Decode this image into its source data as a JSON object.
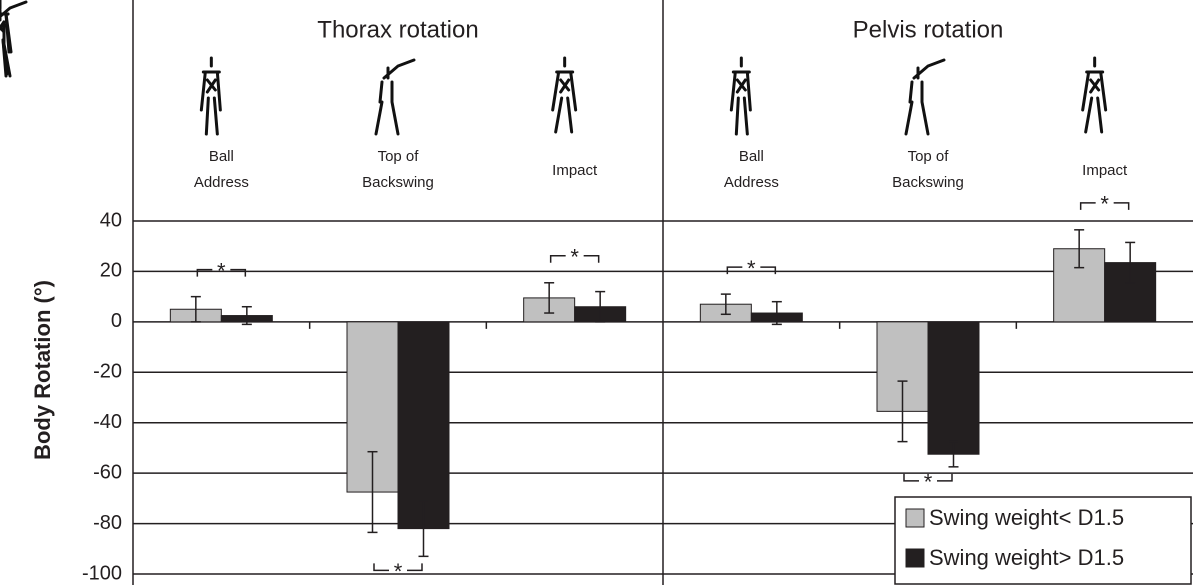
{
  "chart_data": {
    "type": "bar",
    "y_label": "Body Rotation (°)",
    "ylim": [
      -100,
      40
    ],
    "yticks": [
      -100,
      -80,
      -60,
      -40,
      -20,
      0,
      20,
      40
    ],
    "grid": true,
    "legend": "lower right",
    "series": [
      {
        "name": "Swing weight< D1.5",
        "color": "#c0c0c0"
      },
      {
        "name": "Swing weight> D1.5",
        "color": "#231f20"
      }
    ],
    "panels": [
      {
        "title": "Thorax rotation",
        "categories": [
          [
            "Ball",
            "Address"
          ],
          [
            "Top of",
            "Backswing"
          ],
          [
            "Impact"
          ]
        ],
        "series": [
          {
            "values": [
              5,
              -67.5,
              9.5
            ],
            "errors": [
              5,
              16,
              6
            ]
          },
          {
            "values": [
              2.5,
              -82,
              6
            ],
            "errors": [
              3.5,
              11,
              6
            ]
          }
        ],
        "significance": [
          "*",
          "*",
          "*"
        ]
      },
      {
        "title": "Pelvis rotation",
        "categories": [
          [
            "Ball",
            "Address"
          ],
          [
            "Top of",
            "Backswing"
          ],
          [
            "Impact"
          ]
        ],
        "series": [
          {
            "values": [
              7,
              -35.5,
              29
            ],
            "errors": [
              4,
              12,
              7.5
            ]
          },
          {
            "values": [
              3.5,
              -52.5,
              23.5
            ],
            "errors": [
              4.5,
              5,
              8
            ]
          }
        ],
        "significance": [
          "*",
          "*",
          "*"
        ]
      }
    ]
  }
}
